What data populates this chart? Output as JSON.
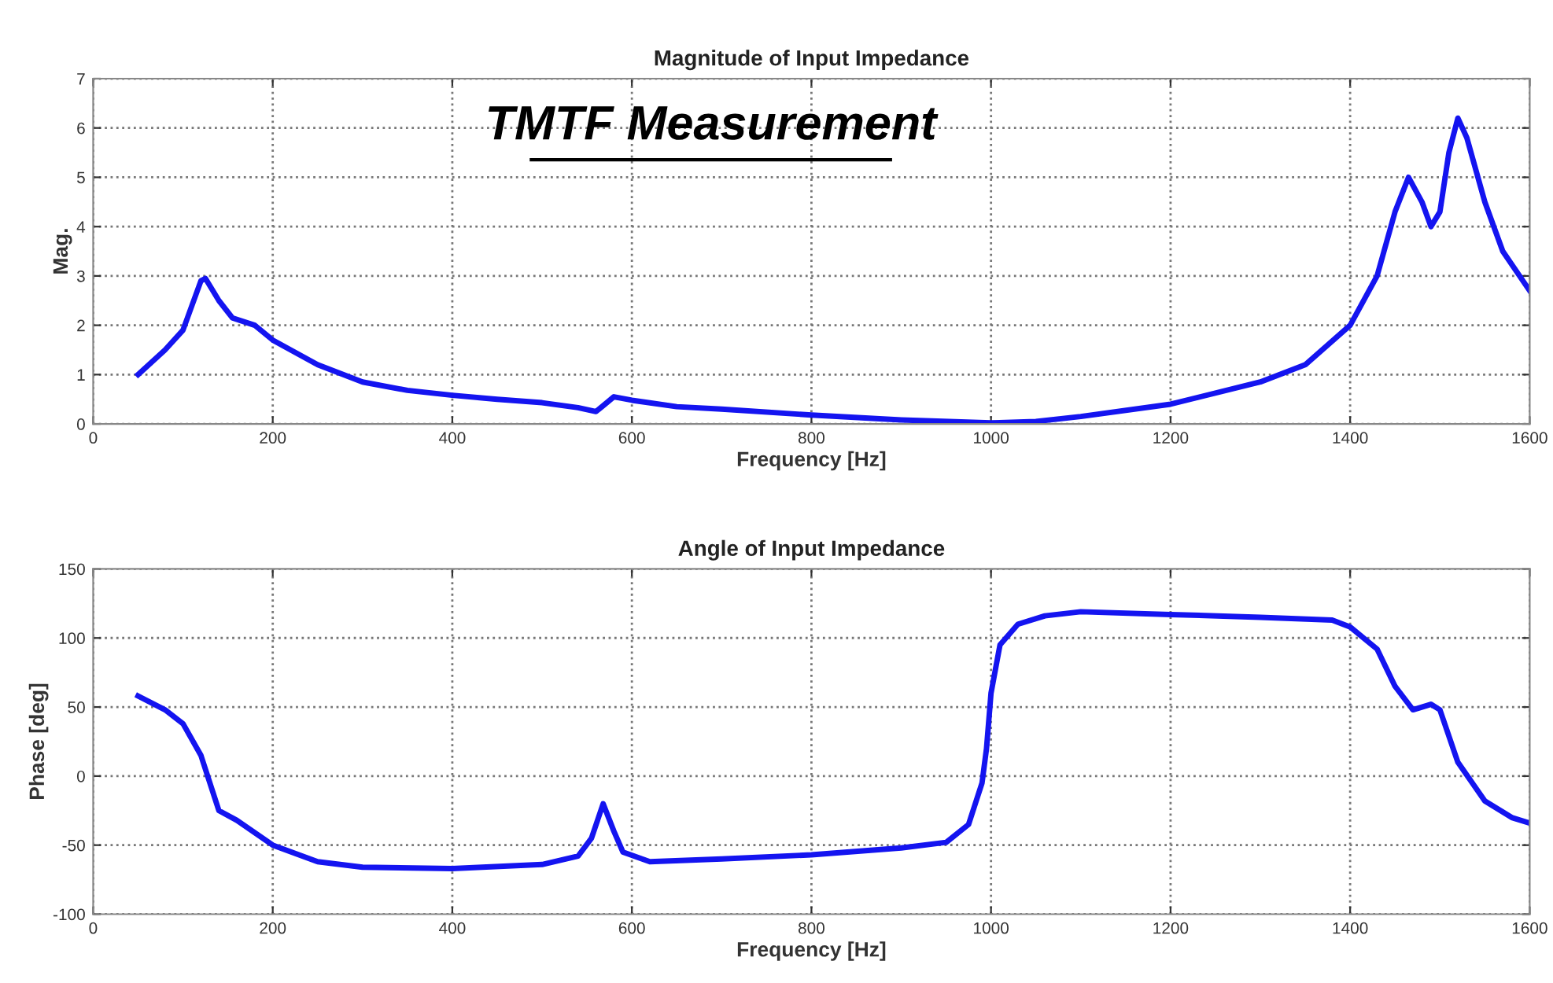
{
  "chart_data": [
    {
      "type": "line",
      "title": "Magnitude of Input Impedance",
      "xlabel": "Frequency [Hz]",
      "ylabel": "Mag.",
      "annotations": [
        "TMTF Measurement"
      ],
      "x": [
        50,
        80,
        100,
        120,
        125,
        140,
        155,
        180,
        200,
        250,
        300,
        350,
        400,
        450,
        500,
        540,
        560,
        570,
        580,
        600,
        650,
        700,
        800,
        900,
        1000,
        1050,
        1100,
        1200,
        1300,
        1350,
        1400,
        1430,
        1450,
        1465,
        1480,
        1490,
        1500,
        1510,
        1520,
        1530,
        1550,
        1570,
        1600
      ],
      "series": [
        {
          "color": "#1414f0",
          "values": [
            1.0,
            1.5,
            1.9,
            2.9,
            2.95,
            2.5,
            2.15,
            2.0,
            1.7,
            1.2,
            0.85,
            0.68,
            0.58,
            0.5,
            0.43,
            0.33,
            0.25,
            0.4,
            0.55,
            0.48,
            0.35,
            0.3,
            0.18,
            0.08,
            0.02,
            0.05,
            0.15,
            0.4,
            0.85,
            1.2,
            2.0,
            3.0,
            4.3,
            5.0,
            4.5,
            4.0,
            4.3,
            5.5,
            6.2,
            5.8,
            4.5,
            3.5,
            2.7
          ]
        }
      ],
      "xlim": [
        0,
        1600
      ],
      "xticks": [
        0,
        200,
        400,
        600,
        800,
        1000,
        1200,
        1400,
        1600
      ],
      "ylim": [
        0,
        7
      ],
      "yticks": [
        0,
        1,
        2,
        3,
        4,
        5,
        6,
        7
      ],
      "grid": true,
      "line_style": "solid"
    },
    {
      "type": "line",
      "title": "Angle of Input Impedance",
      "xlabel": "Frequency [Hz]",
      "ylabel": "Phase [deg]",
      "x": [
        50,
        80,
        100,
        120,
        140,
        160,
        200,
        250,
        300,
        400,
        500,
        540,
        555,
        568,
        580,
        590,
        620,
        700,
        800,
        900,
        950,
        975,
        990,
        995,
        1000,
        1010,
        1030,
        1060,
        1100,
        1200,
        1300,
        1380,
        1400,
        1430,
        1450,
        1470,
        1490,
        1500,
        1520,
        1550,
        1580,
        1600
      ],
      "series": [
        {
          "color": "#1414f0",
          "values": [
            58,
            48,
            38,
            15,
            -25,
            -32,
            -50,
            -62,
            -66,
            -67,
            -64,
            -58,
            -45,
            -20,
            -40,
            -55,
            -62,
            -60,
            -57,
            -52,
            -48,
            -35,
            -5,
            20,
            60,
            95,
            110,
            116,
            119,
            117,
            115,
            113,
            108,
            92,
            65,
            48,
            52,
            48,
            10,
            -18,
            -30,
            -34
          ]
        }
      ],
      "xlim": [
        0,
        1600
      ],
      "xticks": [
        0,
        200,
        400,
        600,
        800,
        1000,
        1200,
        1400,
        1600
      ],
      "ylim": [
        -100,
        150
      ],
      "yticks": [
        -100,
        -50,
        0,
        50,
        100,
        150
      ],
      "grid": true,
      "line_style": "solid"
    }
  ]
}
